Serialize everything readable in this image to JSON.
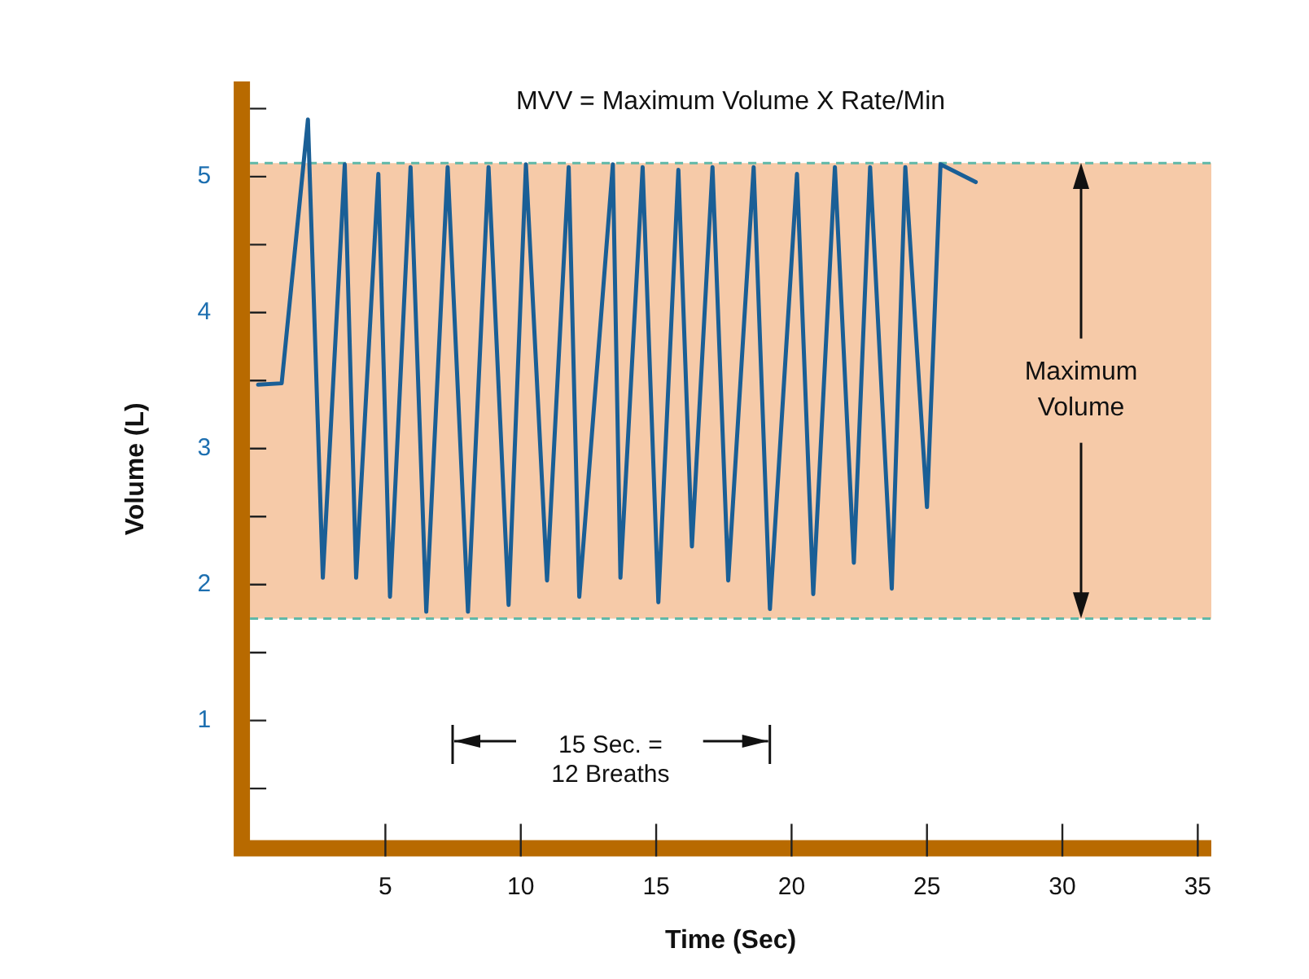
{
  "chart_data": {
    "type": "line",
    "xlabel": "Time (Sec)",
    "ylabel": "Volume (L)",
    "annotations": [
      "MVV = Maximum Volume X Rate/Min",
      "15 Sec. = 12 Breaths"
    ],
    "xlim": [
      0,
      35.5
    ],
    "xticks": [
      5,
      10,
      15,
      20,
      25,
      30,
      35
    ],
    "ylim": [
      0,
      5.7
    ],
    "yticks": [
      {
        "value": 0.5,
        "label": null
      },
      1,
      {
        "value": 1.5,
        "label": null
      },
      2,
      {
        "value": 2.5,
        "label": null
      },
      3,
      {
        "value": 3.5,
        "label": null
      },
      4,
      {
        "value": 4.5,
        "label": null
      },
      5,
      {
        "value": 5.5,
        "label": null
      }
    ],
    "grid": false,
    "legend": false,
    "marker": "none",
    "line_style": "solid",
    "bands": [
      {
        "axis": "y",
        "from": 1.75,
        "to": 5.1,
        "label": "Maximum Volume",
        "color": "#f6caa8"
      }
    ],
    "ref_lines": [
      {
        "axis": "y",
        "value": 1.75,
        "color": "#5fb8a8",
        "line_style": "dashed"
      },
      {
        "axis": "y",
        "value": 5.1,
        "color": "#5fb8a8",
        "line_style": "dashed"
      }
    ],
    "series": [
      {
        "color": "#1a5f96",
        "x": [
          0.3,
          1.17,
          2.14,
          2.69,
          3.5,
          3.92,
          4.74,
          5.17,
          5.93,
          6.51,
          7.3,
          8.05,
          8.81,
          9.55,
          10.19,
          10.97,
          11.77,
          12.16,
          13.4,
          13.68,
          14.5,
          15.08,
          15.82,
          16.32,
          17.08,
          17.66,
          18.6,
          19.2,
          20.2,
          20.8,
          21.6,
          22.3,
          22.9,
          23.7,
          24.2,
          25.0,
          25.5,
          26.8
        ],
        "values": [
          3.47,
          3.48,
          5.42,
          2.05,
          5.09,
          2.05,
          5.02,
          1.91,
          5.07,
          1.8,
          5.07,
          1.8,
          5.07,
          1.85,
          5.09,
          2.03,
          5.07,
          1.91,
          5.09,
          2.05,
          5.07,
          1.87,
          5.05,
          2.28,
          5.07,
          2.03,
          5.07,
          1.82,
          5.02,
          1.93,
          5.07,
          2.16,
          5.07,
          1.97,
          5.07,
          2.57,
          5.09,
          4.96
        ]
      }
    ]
  }
}
